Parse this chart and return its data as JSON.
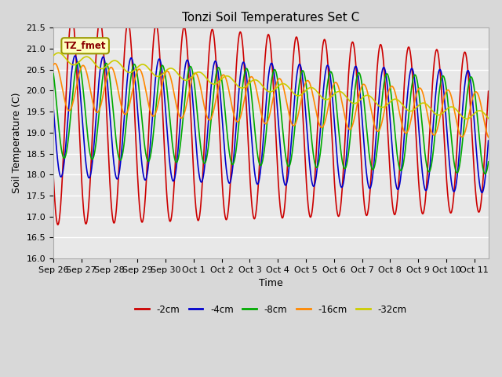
{
  "title": "Tonzi Soil Temperatures Set C",
  "xlabel": "Time",
  "ylabel": "Soil Temperature (C)",
  "ylim": [
    16.0,
    21.5
  ],
  "tick_labels": [
    "Sep 26",
    "Sep 27",
    "Sep 28",
    "Sep 29",
    "Sep 30",
    "Oct 1",
    "Oct 2",
    "Oct 3",
    "Oct 4",
    "Oct 5",
    "Oct 6",
    "Oct 7",
    "Oct 8",
    "Oct 9",
    "Oct 10",
    "Oct 11"
  ],
  "series_colors": {
    "-2cm": "#cc0000",
    "-4cm": "#0000cc",
    "-8cm": "#00aa00",
    "-16cm": "#ff8800",
    "-32cm": "#cccc00"
  },
  "annotation_text": "TZ_fmet",
  "background_color": "#e8e8e8",
  "title_fontsize": 11,
  "axis_label_fontsize": 9,
  "tick_fontsize": 8
}
